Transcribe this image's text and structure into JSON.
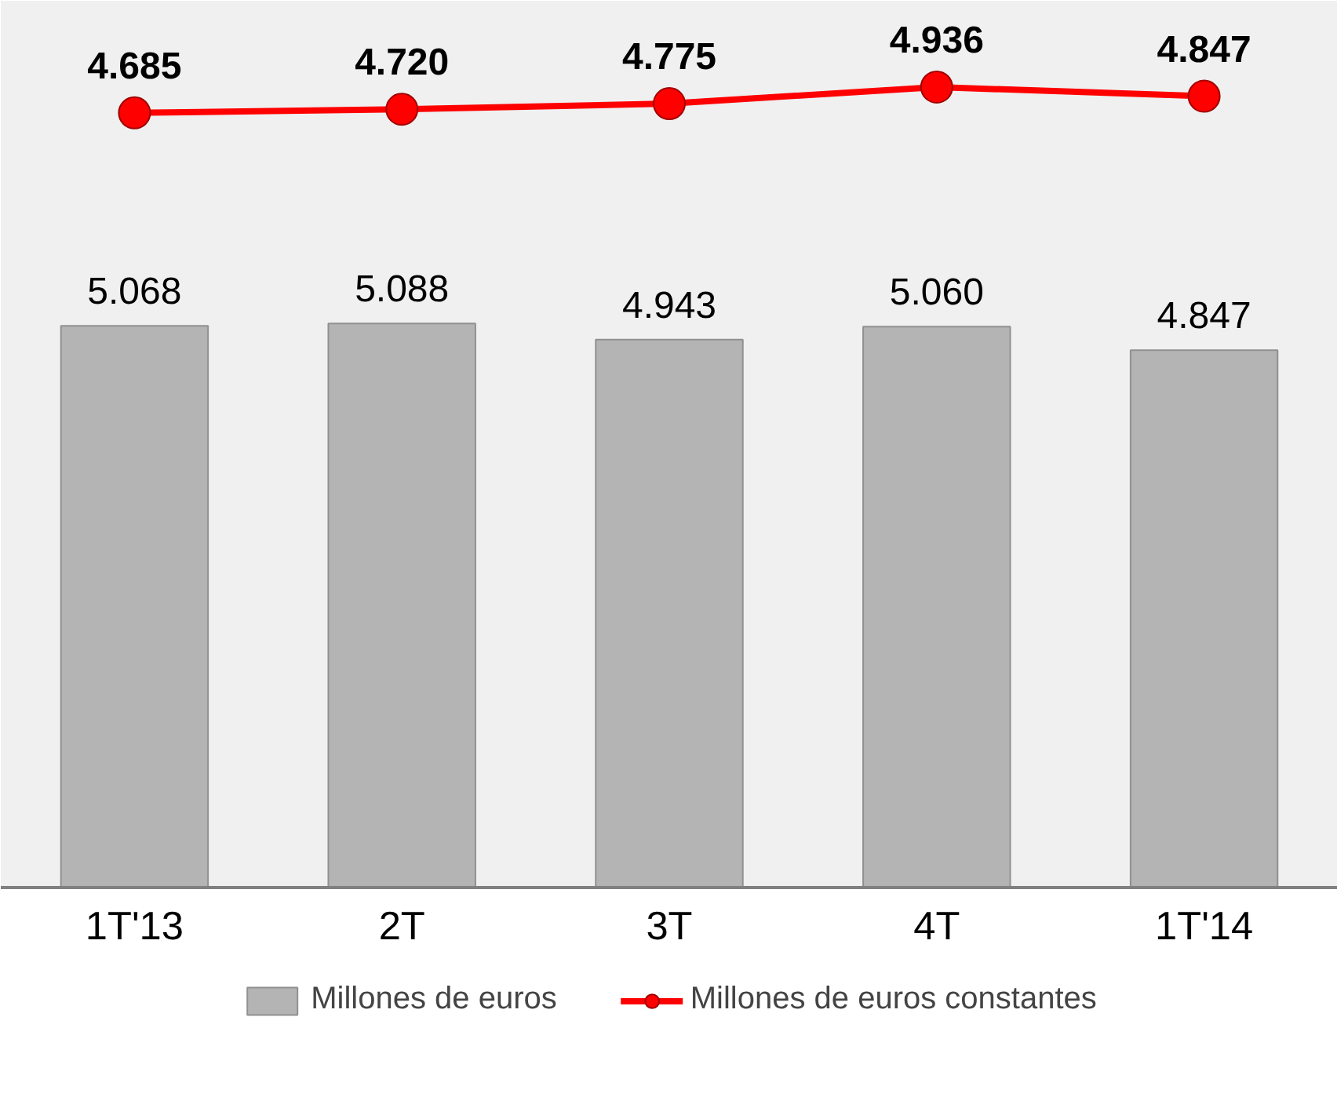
{
  "chart_data": {
    "type": "bar",
    "categories": [
      "1T'13",
      "2T",
      "3T",
      "4T",
      "1T'14"
    ],
    "series": [
      {
        "name": "Millones de euros",
        "color": "#b4b4b4",
        "values": [
          5.068,
          5.088,
          4.943,
          5.06,
          4.847
        ],
        "value_labels": [
          "5.068",
          "5.088",
          "4.943",
          "5.060",
          "4.847"
        ]
      },
      {
        "name": "Millones de euros constantes",
        "type": "line",
        "axis": "y2",
        "color": "#ff0000",
        "values": [
          4.685,
          4.72,
          4.775,
          4.936,
          4.847
        ],
        "value_labels": [
          "4.685",
          "4.720",
          "4.775",
          "4.936",
          "4.847"
        ]
      }
    ],
    "ylim": [
      0,
      8
    ],
    "tick_labels": "x",
    "grid": false,
    "legend": "bottom",
    "marker": "circle",
    "line_style": "solid"
  }
}
